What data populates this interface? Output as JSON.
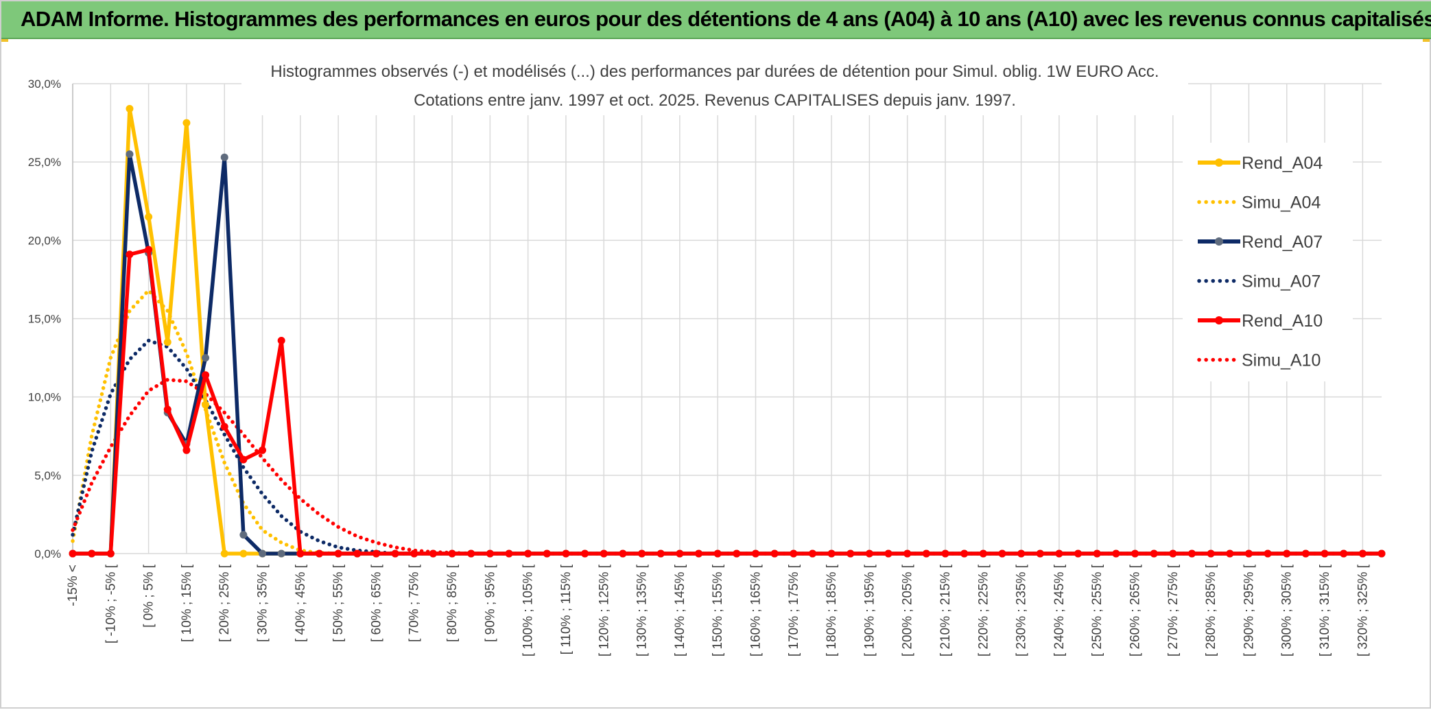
{
  "header": {
    "title": "ADAM Informe. Histogrammes des performances en euros pour des détentions de 4 ans (A04) à 10 ans (A10) avec les revenus connus capitalisés"
  },
  "chart_data": {
    "type": "line",
    "title": "Histogrammes observés (-) et modélisés (...) des performances par durées de détention pour Simul. oblig. 1W EURO Acc.",
    "subtitle": "Cotations entre janv. 1997 et oct. 2025. Revenus CAPITALISES depuis janv. 1997.",
    "xlabel": "",
    "ylabel": "",
    "ylim": [
      0,
      30
    ],
    "y_ticks": [
      "0,0%",
      "5,0%",
      "10,0%",
      "15,0%",
      "20,0%",
      "25,0%",
      "30,0%"
    ],
    "grid": true,
    "legend_position": "right",
    "categories": [
      "-15% <",
      "",
      "[ -10% ; -5% [",
      "",
      "[ 0% ; 5% [",
      "",
      "[ 10% ; 15% [",
      "",
      "[ 20% ; 25% [",
      "",
      "[ 30% ; 35% [",
      "",
      "[ 40% ; 45% [",
      "",
      "[ 50% ; 55% [",
      "",
      "[ 60% ; 65% [",
      "",
      "[ 70% ; 75% [",
      "",
      "[ 80% ; 85% [",
      "",
      "[ 90% ; 95% [",
      "",
      "[ 100% ; 105% [",
      "",
      "[ 110% ; 115% [",
      "",
      "[ 120% ; 125% [",
      "",
      "[ 130% ; 135% [",
      "",
      "[ 140% ; 145% [",
      "",
      "[ 150% ; 155% [",
      "",
      "[ 160% ; 165% [",
      "",
      "[ 170% ; 175% [",
      "",
      "[ 180% ; 185% [",
      "",
      "[ 190% ; 195% [",
      "",
      "[ 200% ; 205% [",
      "",
      "[ 210% ; 215% [",
      "",
      "[ 220% ; 225% [",
      "",
      "[ 230% ; 235% [",
      "",
      "[ 240% ; 245% [",
      "",
      "[ 250% ; 255% [",
      "",
      "[ 260% ; 265% [",
      "",
      "[ 270% ; 275% [",
      "",
      "[ 280% ; 285% [",
      "",
      "[ 290% ; 295% [",
      "",
      "[ 300% ; 305% [",
      "",
      "[ 310% ; 315% [",
      "",
      "[ 320% ; 325% [",
      ""
    ],
    "series": [
      {
        "name": "Rend_A04",
        "style": "solid",
        "color": "#ffc000",
        "values": [
          0,
          0,
          0,
          28.4,
          21.5,
          13.5,
          27.5,
          9.5,
          0,
          0,
          0,
          0,
          0,
          0,
          0,
          0,
          0,
          0,
          0,
          0,
          0,
          0,
          0,
          0,
          0,
          0,
          0,
          0,
          0,
          0,
          0,
          0,
          0,
          0,
          0,
          0,
          0,
          0,
          0,
          0,
          0,
          0,
          0,
          0,
          0,
          0,
          0,
          0,
          0,
          0,
          0,
          0,
          0,
          0,
          0,
          0,
          0,
          0,
          0,
          0,
          0,
          0,
          0,
          0,
          0,
          0,
          0,
          0,
          0,
          0
        ]
      },
      {
        "name": "Simu_A04",
        "style": "dotted",
        "color": "#ffc000",
        "values": [
          0.8,
          7.5,
          12.5,
          15.5,
          16.8,
          15.5,
          12.8,
          9.2,
          5.8,
          3.2,
          1.5,
          0.7,
          0.2,
          0.05,
          0,
          0,
          0,
          0,
          0,
          0,
          0,
          0,
          0,
          0,
          0,
          0,
          0,
          0,
          0,
          0,
          0,
          0,
          0,
          0,
          0,
          0,
          0,
          0,
          0,
          0,
          0,
          0,
          0,
          0,
          0,
          0,
          0,
          0,
          0,
          0,
          0,
          0,
          0,
          0,
          0,
          0,
          0,
          0,
          0,
          0,
          0,
          0,
          0,
          0,
          0,
          0,
          0,
          0,
          0,
          0
        ]
      },
      {
        "name": "Rend_A07",
        "style": "solid",
        "color": "#0d2a66",
        "values": [
          0,
          0,
          0,
          25.5,
          19.2,
          9.0,
          7.0,
          12.5,
          25.3,
          1.2,
          0,
          0,
          0,
          0,
          0,
          0,
          0,
          0,
          0,
          0,
          0,
          0,
          0,
          0,
          0,
          0,
          0,
          0,
          0,
          0,
          0,
          0,
          0,
          0,
          0,
          0,
          0,
          0,
          0,
          0,
          0,
          0,
          0,
          0,
          0,
          0,
          0,
          0,
          0,
          0,
          0,
          0,
          0,
          0,
          0,
          0,
          0,
          0,
          0,
          0,
          0,
          0,
          0,
          0,
          0,
          0,
          0,
          0,
          0,
          0
        ]
      },
      {
        "name": "Simu_A07",
        "style": "dotted",
        "color": "#0d2a66",
        "values": [
          1.2,
          6.5,
          10.2,
          12.4,
          13.6,
          13.2,
          11.8,
          9.8,
          7.6,
          5.5,
          3.8,
          2.4,
          1.4,
          0.8,
          0.4,
          0.2,
          0.1,
          0,
          0,
          0,
          0,
          0,
          0,
          0,
          0,
          0,
          0,
          0,
          0,
          0,
          0,
          0,
          0,
          0,
          0,
          0,
          0,
          0,
          0,
          0,
          0,
          0,
          0,
          0,
          0,
          0,
          0,
          0,
          0,
          0,
          0,
          0,
          0,
          0,
          0,
          0,
          0,
          0,
          0,
          0,
          0,
          0,
          0,
          0,
          0,
          0,
          0,
          0,
          0,
          0
        ]
      },
      {
        "name": "Rend_A10",
        "style": "solid",
        "color": "#ff0000",
        "values": [
          0,
          0,
          0,
          19.1,
          19.4,
          9.2,
          6.6,
          11.4,
          8.1,
          6.0,
          6.6,
          13.6,
          0,
          0,
          0,
          0,
          0,
          0,
          0,
          0,
          0,
          0,
          0,
          0,
          0,
          0,
          0,
          0,
          0,
          0,
          0,
          0,
          0,
          0,
          0,
          0,
          0,
          0,
          0,
          0,
          0,
          0,
          0,
          0,
          0,
          0,
          0,
          0,
          0,
          0,
          0,
          0,
          0,
          0,
          0,
          0,
          0,
          0,
          0,
          0,
          0,
          0,
          0,
          0,
          0,
          0,
          0,
          0,
          0,
          0
        ]
      },
      {
        "name": "Simu_A10",
        "style": "dotted",
        "color": "#ff0000",
        "values": [
          1.5,
          4.5,
          6.8,
          8.8,
          10.4,
          11.1,
          11.0,
          10.2,
          9.0,
          7.6,
          6.1,
          4.7,
          3.5,
          2.5,
          1.7,
          1.1,
          0.7,
          0.4,
          0.2,
          0.1,
          0.05,
          0,
          0,
          0,
          0,
          0,
          0,
          0,
          0,
          0,
          0,
          0,
          0,
          0,
          0,
          0,
          0,
          0,
          0,
          0,
          0,
          0,
          0,
          0,
          0,
          0,
          0,
          0,
          0,
          0,
          0,
          0,
          0,
          0,
          0,
          0,
          0,
          0,
          0,
          0,
          0,
          0,
          0,
          0,
          0,
          0,
          0,
          0,
          0,
          0
        ]
      }
    ]
  }
}
